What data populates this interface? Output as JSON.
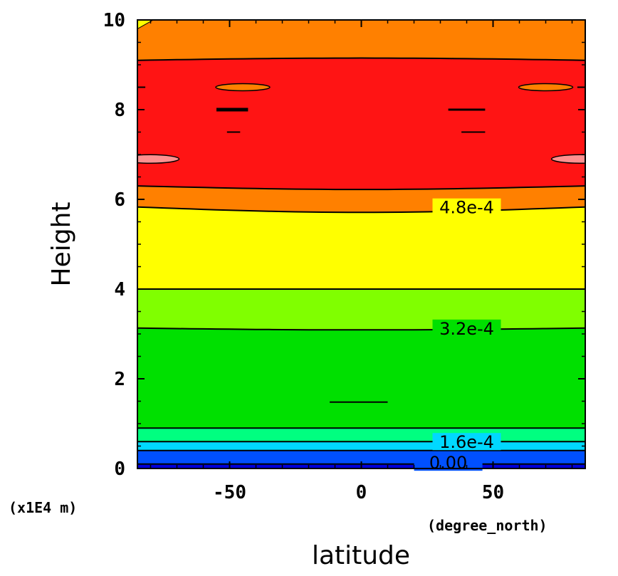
{
  "chart_data": {
    "type": "heatmap",
    "subtype": "filled-contour",
    "title": "",
    "xlabel": "latitude",
    "xunits": "(degree_north)",
    "ylabel": "Height",
    "yunits": "(x1E4 m)",
    "xlim": [
      -85,
      85
    ],
    "ylim": [
      0,
      10
    ],
    "xticks": [
      -50,
      0,
      50
    ],
    "xtick_labels": [
      "-50",
      "0",
      "50"
    ],
    "yticks": [
      0,
      2,
      4,
      6,
      8,
      10
    ],
    "ytick_labels": [
      "0",
      "2",
      "4",
      "6",
      "8",
      "10"
    ],
    "grid": false,
    "contour_interval": 8e-05,
    "contour_labels": [
      {
        "text": "4.8e-4",
        "x": 40,
        "y": 5.83
      },
      {
        "text": "3.2e-4",
        "x": 40,
        "y": 3.13
      },
      {
        "text": "1.6e-4",
        "x": 40,
        "y": 0.6
      },
      {
        "text": "0.00",
        "x": 33,
        "y": 0.14
      }
    ],
    "bands": [
      {
        "lower": 0.0,
        "upper": 8e-05,
        "color": "#0000d8",
        "y_range": [
          0.0,
          0.1
        ]
      },
      {
        "lower": 8e-05,
        "upper": 0.00016,
        "color": "#0050ff",
        "y_range": [
          0.1,
          0.4
        ]
      },
      {
        "lower": 0.00016,
        "upper": 0.00024,
        "color": "#00d8ff",
        "y_range": [
          0.4,
          0.6
        ]
      },
      {
        "lower": 0.00024,
        "upper": 0.00032,
        "color": "#00ff80",
        "y_range": [
          0.6,
          0.9
        ]
      },
      {
        "lower": 0.00032,
        "upper": 0.0004,
        "color": "#00e000",
        "y_range": [
          0.9,
          3.13
        ]
      },
      {
        "lower": 0.0004,
        "upper": 0.00048,
        "color": "#80ff00",
        "y_range": [
          3.13,
          4.0
        ]
      },
      {
        "lower": 0.00048,
        "upper": 0.00056,
        "color": "#ffff00",
        "y_range": [
          4.0,
          5.83
        ]
      },
      {
        "lower": 0.00056,
        "upper": 0.00064,
        "color": "#ff8000",
        "y_range": [
          5.83,
          6.3
        ]
      },
      {
        "lower": 0.00064,
        "upper": 0.00072,
        "color": "#ff1414",
        "y_range": [
          6.3,
          9.1
        ]
      },
      {
        "lower": 0.00056,
        "upper": 0.00064,
        "color": "#ff8000",
        "y_range": [
          9.1,
          10.0
        ]
      }
    ],
    "colors": {
      "pink": "#ff9090",
      "corner_yellow": "#ffff00",
      "frame": "#000000"
    }
  }
}
